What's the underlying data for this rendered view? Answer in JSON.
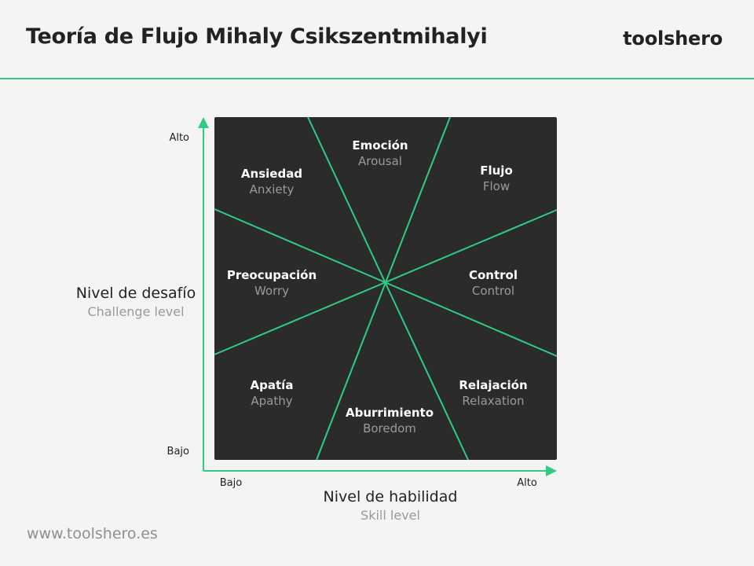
{
  "header": {
    "title": "Teoría de Flujo Mihaly Csikszentmihalyi",
    "brand": "toolshero"
  },
  "footer": {
    "url": "www.toolshero.es"
  },
  "colors": {
    "accent": "#2ecc85",
    "panel": "#2b2b2b",
    "background": "#f4f4f4"
  },
  "axes": {
    "y": {
      "label": "Nivel de desafío",
      "sublabel": "Challenge level",
      "high": "Alto",
      "low": "Bajo"
    },
    "x": {
      "label": "Nivel de habilidad",
      "sublabel": "Skill level",
      "low": "Bajo",
      "high": "Alto"
    }
  },
  "zones": [
    {
      "es": "Emoción",
      "en": "Arousal"
    },
    {
      "es": "Ansiedad",
      "en": "Anxiety"
    },
    {
      "es": "Flujo",
      "en": "Flow"
    },
    {
      "es": "Preocupación",
      "en": "Worry"
    },
    {
      "es": "Control",
      "en": "Control"
    },
    {
      "es": "Apatía",
      "en": "Apathy"
    },
    {
      "es": "Relajación",
      "en": "Relaxation"
    },
    {
      "es": "Aburrimiento",
      "en": "Boredom"
    }
  ]
}
